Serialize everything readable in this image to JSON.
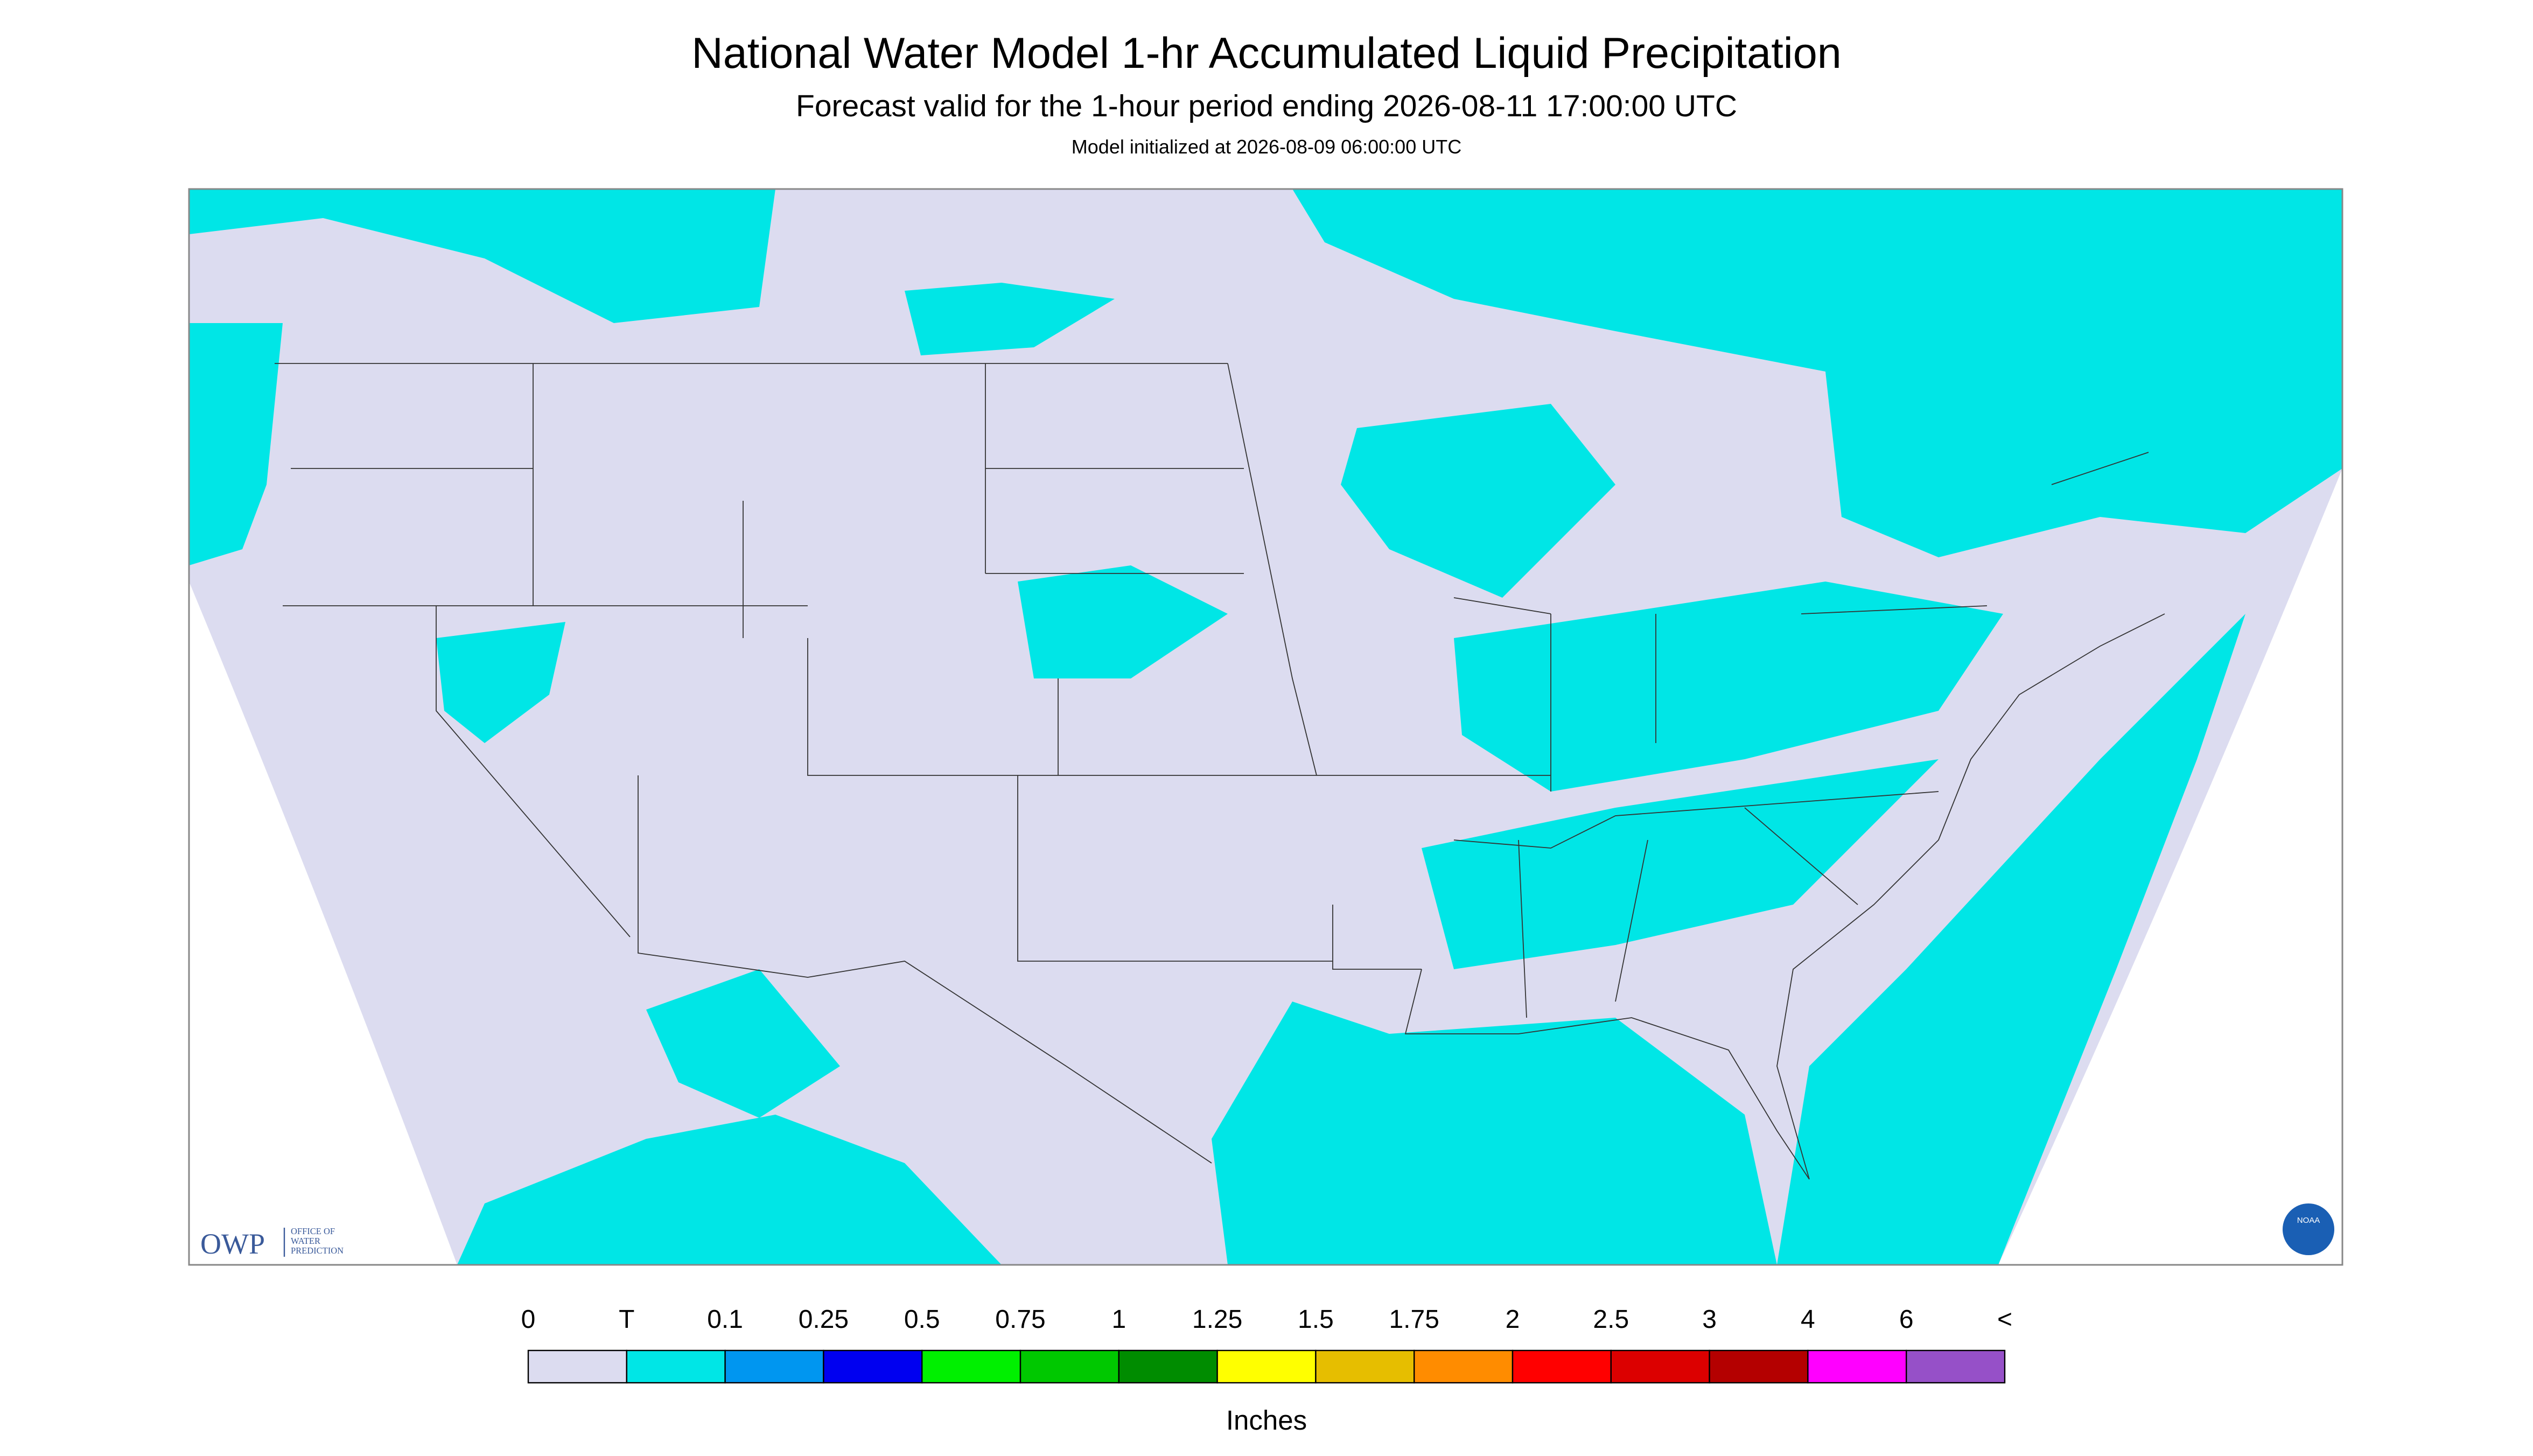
{
  "header": {
    "title": "National Water Model 1-hr Accumulated Liquid Precipitation",
    "subtitle": "Forecast valid for the 1-hour period ending 2026-08-11 17:00:00 UTC",
    "note": "Model initialized at 2026-08-09 06:00:00 UTC"
  },
  "logos": {
    "owp": "OWP",
    "owp_text": [
      "OFFICE OF",
      "WATER",
      "PREDICTION"
    ],
    "noaa": "NOAA"
  },
  "legend": {
    "labels": [
      "0",
      "T",
      "0.1",
      "0.25",
      "0.5",
      "0.75",
      "1",
      "1.25",
      "1.5",
      "1.75",
      "2",
      "2.5",
      "3",
      "4",
      "6",
      "<"
    ],
    "colors": [
      "#dcdcf0",
      "#00e6e6",
      "#0096f0",
      "#0000f0",
      "#00f000",
      "#00c800",
      "#008c00",
      "#ffff00",
      "#e6be00",
      "#ff8c00",
      "#ff0000",
      "#dc0000",
      "#b40000",
      "#ff00ff",
      "#9650c8"
    ],
    "unit": "Inches"
  }
}
